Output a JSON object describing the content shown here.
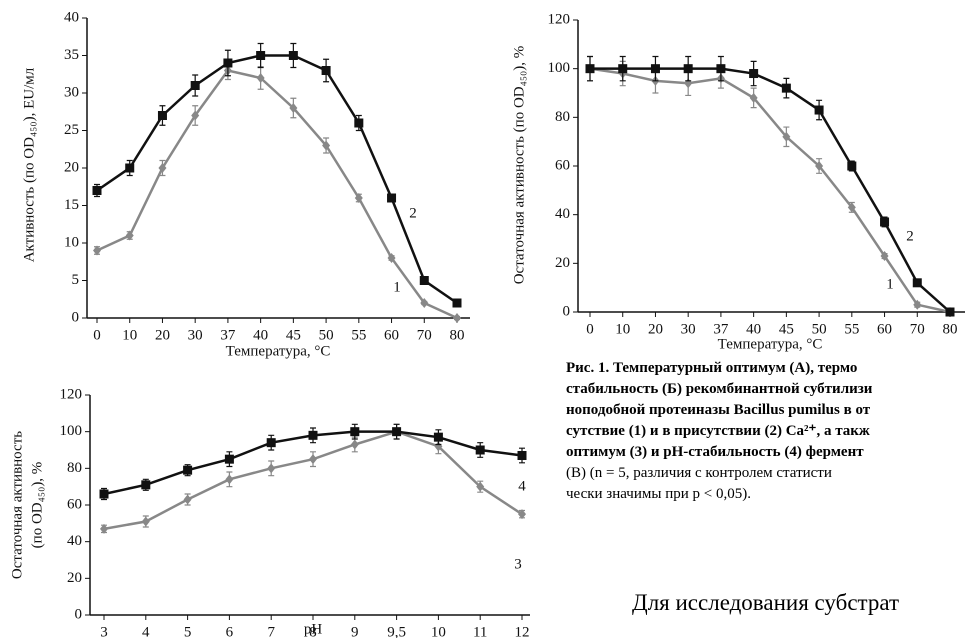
{
  "chart_data": [
    {
      "type": "line",
      "x_label": "Температура, °C",
      "y_label": [
        "Активность (по OD₄₅₀), EU/мл"
      ],
      "categories": [
        "0",
        "10",
        "20",
        "30",
        "37",
        "40",
        "45",
        "50",
        "55",
        "60",
        "70",
        "80"
      ],
      "ylim": [
        0,
        40
      ],
      "yticks": [
        0,
        5,
        10,
        15,
        20,
        25,
        30,
        35,
        40
      ],
      "series": [
        {
          "name": "1",
          "color": "#888888",
          "marker": "diamond",
          "values": [
            9,
            11,
            20,
            27,
            33,
            32,
            28,
            23,
            16,
            8,
            2,
            0
          ],
          "errors": [
            0.5,
            0.5,
            1,
            1.3,
            1.2,
            1.5,
            1.3,
            1,
            0.5,
            0.3,
            0.2,
            0.2
          ]
        },
        {
          "name": "2",
          "color": "#111111",
          "marker": "square",
          "values": [
            17,
            20,
            27,
            31,
            34,
            35,
            35,
            33,
            26,
            16,
            5,
            2
          ],
          "errors": [
            0.8,
            1,
            1.3,
            1.4,
            1.7,
            1.6,
            1.6,
            1.5,
            1,
            0.5,
            0.3,
            0.2
          ]
        }
      ]
    },
    {
      "type": "line",
      "x_label": "Температура, °C",
      "y_label": [
        "Остаточная активность (по OD₄₅₀), %"
      ],
      "categories": [
        "0",
        "10",
        "20",
        "30",
        "37",
        "40",
        "45",
        "50",
        "55",
        "60",
        "70",
        "80"
      ],
      "ylim": [
        0,
        120
      ],
      "yticks": [
        0,
        20,
        40,
        60,
        80,
        100,
        120
      ],
      "series": [
        {
          "name": "1",
          "color": "#888888",
          "marker": "diamond",
          "values": [
            100,
            98,
            95,
            94,
            96,
            88,
            72,
            60,
            43,
            23,
            3,
            0
          ],
          "errors": [
            5,
            5,
            5,
            5,
            4,
            4,
            4,
            3,
            2,
            1,
            1,
            0.5
          ]
        },
        {
          "name": "2",
          "color": "#111111",
          "marker": "square",
          "values": [
            100,
            100,
            100,
            100,
            100,
            98,
            92,
            83,
            60,
            37,
            12,
            0
          ],
          "errors": [
            5,
            5,
            5,
            5,
            5,
            5,
            4,
            4,
            2,
            2,
            1,
            0.5
          ]
        }
      ]
    },
    {
      "type": "line",
      "x_label": "pH",
      "y_label": [
        "Остаточная активность",
        "(по OD₄₅₀), %"
      ],
      "categories": [
        "3",
        "4",
        "5",
        "6",
        "7",
        "8",
        "9",
        "9,5",
        "10",
        "11",
        "12"
      ],
      "ylim": [
        0,
        120
      ],
      "yticks": [
        0,
        20,
        40,
        60,
        80,
        100,
        120
      ],
      "series": [
        {
          "name": "3",
          "color": "#888888",
          "marker": "diamond",
          "values": [
            47,
            51,
            63,
            74,
            80,
            85,
            93,
            100,
            92,
            70,
            55
          ],
          "errors": [
            2,
            3,
            3,
            4,
            4,
            4,
            4,
            4,
            4,
            3,
            2
          ]
        },
        {
          "name": "4",
          "color": "#111111",
          "marker": "square",
          "values": [
            66,
            71,
            79,
            85,
            94,
            98,
            100,
            100,
            97,
            90,
            87
          ],
          "errors": [
            3,
            3,
            3,
            4,
            4,
            4,
            4,
            4,
            4,
            4,
            4
          ]
        }
      ]
    }
  ],
  "caption": [
    "Рис. 1. Температурный оптимум (А), термо",
    "стабильность (Б) рекомбинантной субтилизи",
    "ноподобной протеиназы Bacillus pumilus в от",
    "сутствие (1) и в присутствии (2) Ca²⁺, а такж",
    "оптимум (3) и pH-стабильность (4) фермент",
    "(B) (n = 5, различия с контролем статисти",
    "чески значимы при p < 0,05)."
  ],
  "body_text": "Для исследования субстрат"
}
